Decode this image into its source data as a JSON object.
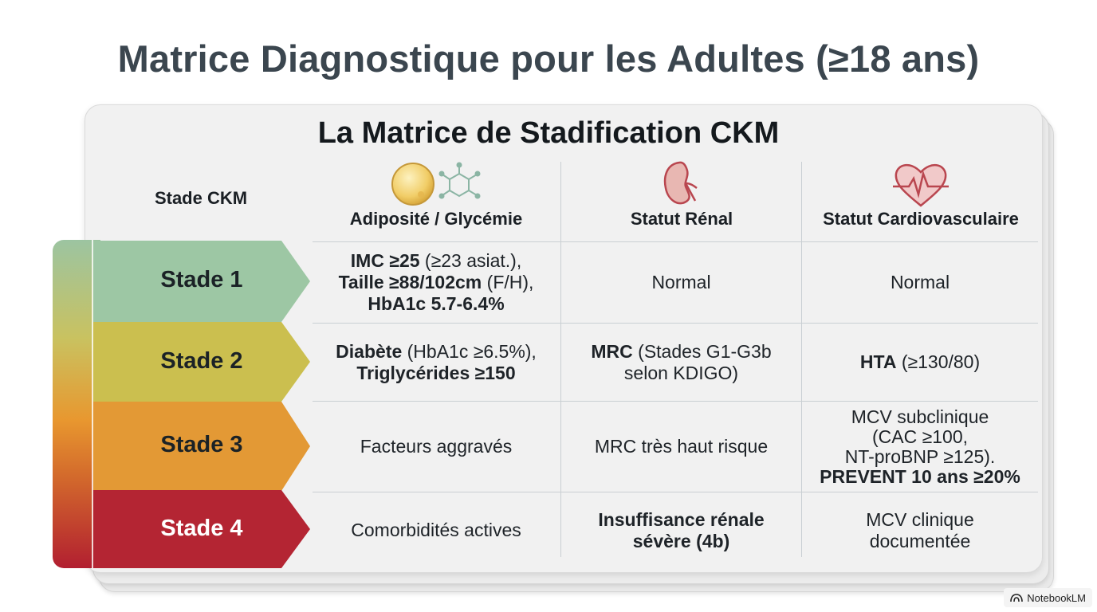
{
  "title": "Matrice Diagnostique pour les Adultes (≥18 ans)",
  "matrix": {
    "title": "La Matrice de Stadification CKM",
    "stage_header": "Stade CKM",
    "columns": [
      {
        "label": "Adiposité / Glycémie",
        "icon": "fat-cell-molecule-icon"
      },
      {
        "label": "Statut Rénal",
        "icon": "kidney-icon"
      },
      {
        "label": "Statut Cardiovasculaire",
        "icon": "heart-pulse-icon"
      }
    ],
    "stage_colors": [
      "#9dc7a4",
      "#cbbf4f",
      "#e39935",
      "#b42533"
    ],
    "rows": [
      {
        "stage": "Stade 1",
        "adiposity": [
          [
            {
              "t": "IMC ≥25",
              "b": true
            },
            {
              "t": " (≥23 asiat.),",
              "b": false
            }
          ],
          [
            {
              "t": "Taille ≥88/102cm",
              "b": true
            },
            {
              "t": " (F/H),",
              "b": false
            }
          ],
          [
            {
              "t": "HbA1c 5.7-6.4%",
              "b": true
            }
          ]
        ],
        "renal": [
          [
            {
              "t": "Normal",
              "b": false
            }
          ]
        ],
        "cardio": [
          [
            {
              "t": "Normal",
              "b": false
            }
          ]
        ]
      },
      {
        "stage": "Stade 2",
        "adiposity": [
          [
            {
              "t": "Diabète",
              "b": true
            },
            {
              "t": " (HbA1c ≥6.5%),",
              "b": false
            }
          ],
          [
            {
              "t": "Triglycérides ≥150",
              "b": true
            }
          ]
        ],
        "renal": [
          [
            {
              "t": "MRC",
              "b": true
            },
            {
              "t": " (Stades G1-G3b",
              "b": false
            }
          ],
          [
            {
              "t": "selon KDIGO)",
              "b": false
            }
          ]
        ],
        "cardio": [
          [
            {
              "t": "HTA",
              "b": true
            },
            {
              "t": " (≥130/80)",
              "b": false
            }
          ]
        ]
      },
      {
        "stage": "Stade 3",
        "adiposity": [
          [
            {
              "t": "Facteurs aggravés",
              "b": false
            }
          ]
        ],
        "renal": [
          [
            {
              "t": "MRC très haut risque",
              "b": false
            }
          ]
        ],
        "cardio": [
          [
            {
              "t": "MCV subclinique",
              "b": false
            }
          ],
          [
            {
              "t": "(CAC ≥100,",
              "b": false
            }
          ],
          [
            {
              "t": "NT-proBNP ≥125).",
              "b": false
            }
          ],
          [
            {
              "t": "PREVENT 10 ans ≥20%",
              "b": true
            }
          ]
        ]
      },
      {
        "stage": "Stade 4",
        "adiposity": [
          [
            {
              "t": "Comorbidités actives",
              "b": false
            }
          ]
        ],
        "renal": [
          [
            {
              "t": "Insuffisance rénale",
              "b": true
            }
          ],
          [
            {
              "t": "sévère (4b)",
              "b": true
            }
          ]
        ],
        "cardio": [
          [
            {
              "t": "MCV clinique",
              "b": false
            }
          ],
          [
            {
              "t": "documentée",
              "b": false
            }
          ]
        ]
      }
    ]
  },
  "brand": {
    "label": "NotebookLM",
    "icon": "notebooklm-logo-icon"
  }
}
